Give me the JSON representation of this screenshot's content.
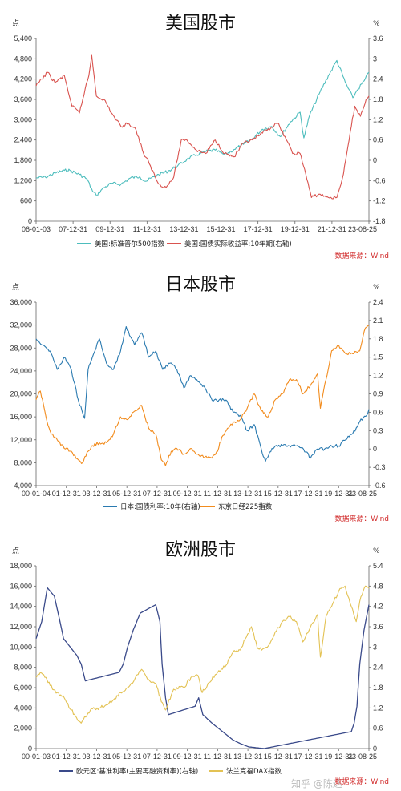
{
  "chart_data": [
    {
      "type": "line",
      "title": "美国股市",
      "left_unit": "点",
      "right_unit": "%",
      "source": "数据来源：Wind",
      "x_ticks": [
        "06-01-03",
        "07-12-31",
        "09-12-31",
        "11-12-31",
        "13-12-31",
        "15-12-31",
        "17-12-31",
        "19-12-31",
        "21-12-31",
        "23-08-25"
      ],
      "x_range": [
        2006.0,
        2023.65
      ],
      "y_left": {
        "range": [
          0,
          5400
        ],
        "ticks": [
          0,
          600,
          1200,
          1800,
          2400,
          3000,
          3600,
          4200,
          4800,
          5400
        ],
        "labels": [
          "0",
          "600",
          "1,200",
          "1,800",
          "2,400",
          "3,000",
          "3,600",
          "4,200",
          "4,800",
          "5,400"
        ]
      },
      "y_right": {
        "range": [
          -1.8,
          3.6
        ],
        "ticks": [
          -1.8,
          -1.2,
          -0.6,
          0,
          0.6,
          1.2,
          1.8,
          2.4,
          3,
          3.6
        ],
        "labels": [
          "-1.8",
          "-1.2",
          "-0.6",
          "0",
          "0.6",
          "1.2",
          "1.8",
          "2.4",
          "3",
          "3.6"
        ]
      },
      "series": [
        {
          "name": "美国:标准普尔500指数",
          "axis": "left",
          "color": "#4dbdbd",
          "x": [
            2006.0,
            2006.5,
            2007.0,
            2007.5,
            2007.8,
            2008.3,
            2008.7,
            2009.0,
            2009.2,
            2009.5,
            2010.0,
            2010.5,
            2011.0,
            2011.5,
            2011.8,
            2012.5,
            2013.0,
            2013.5,
            2014.0,
            2014.5,
            2015.0,
            2015.5,
            2016.0,
            2016.5,
            2017.0,
            2017.5,
            2018.0,
            2018.5,
            2018.95,
            2019.5,
            2020.0,
            2020.2,
            2020.5,
            2021.0,
            2021.5,
            2021.95,
            2022.4,
            2022.8,
            2023.0,
            2023.4,
            2023.65
          ],
          "y": [
            1280,
            1300,
            1420,
            1500,
            1500,
            1380,
            1250,
            880,
            760,
            950,
            1120,
            1090,
            1280,
            1320,
            1180,
            1380,
            1480,
            1630,
            1830,
            1960,
            2060,
            2100,
            1960,
            2120,
            2270,
            2450,
            2720,
            2800,
            2500,
            2940,
            3220,
            2460,
            3120,
            3750,
            4300,
            4750,
            4100,
            3650,
            3850,
            4150,
            4400
          ]
        },
        {
          "name": "美国:国债实际收益率:10年期(右轴)",
          "axis": "right",
          "color": "#d9534f",
          "x": [
            2006.0,
            2006.3,
            2006.6,
            2007.0,
            2007.5,
            2007.9,
            2008.3,
            2008.6,
            2008.8,
            2008.95,
            2009.2,
            2009.6,
            2010.0,
            2010.5,
            2010.9,
            2011.3,
            2011.7,
            2012.0,
            2012.5,
            2012.9,
            2013.3,
            2013.7,
            2014.0,
            2014.5,
            2015.0,
            2015.5,
            2016.0,
            2016.5,
            2017.0,
            2017.5,
            2018.0,
            2018.8,
            2019.2,
            2019.6,
            2020.0,
            2020.3,
            2020.6,
            2021.0,
            2021.5,
            2021.95,
            2022.3,
            2022.6,
            2022.9,
            2023.2,
            2023.5,
            2023.65
          ],
          "y": [
            2.2,
            2.4,
            2.6,
            2.3,
            2.5,
            1.6,
            1.4,
            2.1,
            2.5,
            3.1,
            1.9,
            1.8,
            1.4,
            1.0,
            1.1,
            0.9,
            0.2,
            -0.1,
            -0.7,
            -0.8,
            -0.5,
            0.6,
            0.6,
            0.3,
            0.2,
            0.6,
            0.2,
            0.1,
            0.5,
            0.6,
            0.8,
            1.1,
            0.7,
            0.2,
            0.2,
            -0.4,
            -1.1,
            -1.0,
            -1.1,
            -1.1,
            -0.4,
            0.6,
            1.6,
            1.3,
            1.8,
            1.9
          ]
        }
      ]
    },
    {
      "type": "line",
      "title": "日本股市",
      "left_unit": "点",
      "right_unit": "%",
      "source": "数据来源：Wind",
      "x_ticks": [
        "00-01-04",
        "01-12-31",
        "03-12-31",
        "05-12-31",
        "07-12-31",
        "09-12-31",
        "11-12-31",
        "13-12-31",
        "15-12-31",
        "17-12-31",
        "19-12-31",
        "23-08-25"
      ],
      "x_range": [
        2000.0,
        2023.65
      ],
      "y_left": {
        "range": [
          4000,
          36000
        ],
        "ticks": [
          4000,
          8000,
          12000,
          16000,
          20000,
          24000,
          28000,
          32000,
          36000
        ],
        "labels": [
          "4,000",
          "8,000",
          "12,000",
          "16,000",
          "20,000",
          "24,000",
          "28,000",
          "32,000",
          "36,000"
        ]
      },
      "y_right": {
        "range": [
          -0.6,
          2.4
        ],
        "ticks": [
          -0.6,
          -0.3,
          0,
          0.3,
          0.6,
          0.9,
          1.2,
          1.5,
          1.8,
          2.1,
          2.4
        ],
        "labels": [
          "-0.6",
          "-0.3",
          "0",
          "0.3",
          "0.6",
          "0.9",
          "1.2",
          "1.5",
          "1.8",
          "2.1",
          "2.4"
        ]
      },
      "series": [
        {
          "name": "日本:国债利率:10年(右轴)",
          "axis": "right",
          "color": "#2a7ab0",
          "x": [
            2000.0,
            2000.5,
            2001.0,
            2001.5,
            2002.0,
            2002.5,
            2003.0,
            2003.45,
            2003.7,
            2004.0,
            2004.5,
            2005.0,
            2005.5,
            2006.0,
            2006.4,
            2006.8,
            2007.0,
            2007.5,
            2008.0,
            2008.5,
            2009.0,
            2009.5,
            2010.0,
            2010.5,
            2011.0,
            2011.5,
            2012.0,
            2012.5,
            2013.0,
            2013.5,
            2014.0,
            2014.5,
            2015.0,
            2015.5,
            2016.0,
            2016.3,
            2016.6,
            2017.0,
            2017.5,
            2018.0,
            2018.5,
            2019.0,
            2019.5,
            2020.0,
            2020.5,
            2021.0,
            2021.5,
            2022.0,
            2022.5,
            2023.0,
            2023.5,
            2023.65
          ],
          "y": [
            1.8,
            1.7,
            1.6,
            1.3,
            1.5,
            1.3,
            0.8,
            0.5,
            1.3,
            1.5,
            1.8,
            1.4,
            1.3,
            1.6,
            2.0,
            1.8,
            1.7,
            1.9,
            1.5,
            1.6,
            1.3,
            1.4,
            1.3,
            1.0,
            1.2,
            1.1,
            1.0,
            0.8,
            0.8,
            0.8,
            0.6,
            0.55,
            0.3,
            0.4,
            0.0,
            -0.2,
            -0.05,
            0.05,
            0.05,
            0.05,
            0.05,
            0.0,
            -0.15,
            0.0,
            0.0,
            0.05,
            0.05,
            0.15,
            0.25,
            0.45,
            0.55,
            0.65
          ]
        },
        {
          "name": "东京日经225指数",
          "axis": "left",
          "color": "#f28c1e",
          "x": [
            2000.0,
            2000.3,
            2000.7,
            2001.0,
            2001.5,
            2002.0,
            2002.5,
            2003.0,
            2003.3,
            2003.7,
            2004.0,
            2004.5,
            2005.0,
            2005.5,
            2006.0,
            2006.5,
            2007.0,
            2007.5,
            2008.0,
            2008.5,
            2008.9,
            2009.2,
            2009.6,
            2010.0,
            2010.5,
            2011.0,
            2011.5,
            2012.0,
            2012.5,
            2012.9,
            2013.2,
            2013.6,
            2014.0,
            2014.5,
            2015.0,
            2015.5,
            2016.0,
            2016.5,
            2017.0,
            2017.5,
            2018.0,
            2018.5,
            2018.95,
            2019.5,
            2020.0,
            2020.2,
            2020.6,
            2021.0,
            2021.5,
            2022.0,
            2022.5,
            2023.0,
            2023.4,
            2023.65
          ],
          "y": [
            19000,
            20500,
            16000,
            13500,
            12000,
            10500,
            10000,
            8500,
            8000,
            10000,
            11000,
            11500,
            11500,
            13000,
            16000,
            15500,
            17000,
            18000,
            14000,
            13000,
            8500,
            7500,
            10000,
            10500,
            9500,
            10500,
            9500,
            9000,
            8800,
            10000,
            12500,
            14000,
            15000,
            15500,
            17500,
            20000,
            17000,
            16000,
            19000,
            20000,
            22500,
            22500,
            20000,
            21500,
            23500,
            17500,
            22500,
            27500,
            28500,
            27000,
            27000,
            27500,
            31500,
            32000
          ]
        }
      ]
    },
    {
      "type": "line",
      "title": "欧洲股市",
      "left_unit": "点",
      "right_unit": "%",
      "source": "数据来源：Wind",
      "x_ticks": [
        "00-01-03",
        "01-12-31",
        "03-12-31",
        "05-12-31",
        "07-12-31",
        "09-12-31",
        "11-12-31",
        "13-12-31",
        "15-12-31",
        "17-12-31",
        "19-12-31",
        "23-08-25"
      ],
      "x_range": [
        2000.0,
        2023.65
      ],
      "y_left": {
        "range": [
          0,
          18000
        ],
        "ticks": [
          0,
          2000,
          4000,
          6000,
          8000,
          10000,
          12000,
          14000,
          16000,
          18000
        ],
        "labels": [
          "0",
          "2,000",
          "4,000",
          "6,000",
          "8,000",
          "10,000",
          "12,000",
          "14,000",
          "16,000",
          "18,000"
        ]
      },
      "y_right": {
        "range": [
          0,
          5.4
        ],
        "ticks": [
          0,
          0.6,
          1.2,
          1.8,
          2.4,
          3,
          3.6,
          4.2,
          4.8,
          5.4
        ],
        "labels": [
          "0",
          "0.6",
          "1.2",
          "1.8",
          "2.4",
          "3",
          "3.6",
          "4.2",
          "4.8",
          "5.4"
        ]
      },
      "series": [
        {
          "name": "欧元区:基准利率(主要再融资利率)(右轴)",
          "axis": "right",
          "color": "#3a4a8a",
          "x": [
            2000.0,
            2000.4,
            2000.8,
            2001.3,
            2001.7,
            2001.95,
            2002.9,
            2003.2,
            2003.5,
            2005.9,
            2006.2,
            2006.5,
            2006.9,
            2007.4,
            2008.5,
            2008.8,
            2008.95,
            2009.2,
            2009.4,
            2011.3,
            2011.55,
            2011.85,
            2012.5,
            2014.0,
            2014.5,
            2015.1,
            2016.2,
            2022.4,
            2022.6,
            2022.8,
            2023.0,
            2023.3,
            2023.65
          ],
          "y": [
            3.25,
            3.75,
            4.75,
            4.5,
            3.75,
            3.25,
            2.75,
            2.5,
            2.0,
            2.25,
            2.5,
            3.0,
            3.5,
            4.0,
            4.25,
            3.75,
            2.5,
            1.5,
            1.0,
            1.25,
            1.5,
            1.0,
            0.75,
            0.25,
            0.15,
            0.05,
            0.0,
            0.5,
            0.75,
            1.25,
            2.5,
            3.5,
            4.25
          ]
        },
        {
          "name": "法兰克福DAX指数",
          "axis": "left",
          "color": "#e3c254",
          "x": [
            2000.0,
            2000.3,
            2000.7,
            2001.0,
            2001.5,
            2002.0,
            2002.5,
            2002.8,
            2003.2,
            2003.7,
            2004.0,
            2004.5,
            2005.0,
            2005.5,
            2006.0,
            2006.5,
            2007.0,
            2007.5,
            2008.0,
            2008.5,
            2008.9,
            2009.2,
            2009.7,
            2010.0,
            2010.5,
            2011.0,
            2011.5,
            2011.8,
            2012.3,
            2012.9,
            2013.5,
            2014.0,
            2014.5,
            2015.3,
            2015.7,
            2016.1,
            2016.6,
            2017.0,
            2017.5,
            2018.0,
            2018.5,
            2018.95,
            2019.5,
            2020.0,
            2020.2,
            2020.6,
            2021.0,
            2021.5,
            2021.95,
            2022.4,
            2022.75,
            2023.0,
            2023.4,
            2023.65
          ],
          "y": [
            7000,
            7500,
            7000,
            6200,
            5500,
            5000,
            3800,
            3200,
            2500,
            3500,
            3900,
            4000,
            4300,
            4800,
            5500,
            6000,
            6800,
            7800,
            6800,
            6400,
            4600,
            3800,
            5600,
            6000,
            6000,
            7000,
            7200,
            5500,
            6500,
            7500,
            8200,
            9500,
            9700,
            12000,
            10000,
            9800,
            10300,
            11500,
            12500,
            13000,
            12500,
            10500,
            12000,
            13200,
            9000,
            13000,
            14000,
            15500,
            16000,
            14000,
            12500,
            14500,
            16000,
            15800
          ]
        }
      ]
    }
  ],
  "watermark": "知乎 @陈达"
}
